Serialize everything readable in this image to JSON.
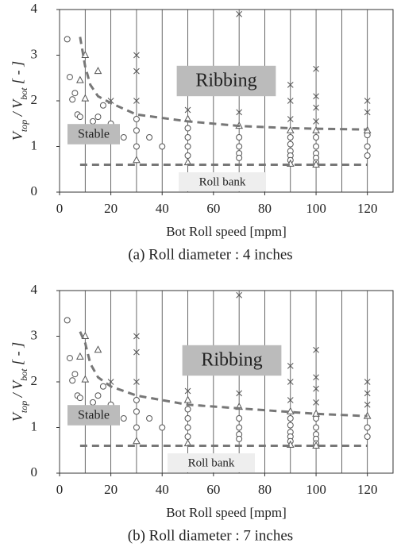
{
  "chart_data": [
    {
      "type": "scatter",
      "caption": "(a) Roll diameter : 4 inches",
      "xlabel": "Bot Roll speed [mpm]",
      "ylabel": [
        {
          "text": "V"
        },
        {
          "text": "top",
          "sub": true
        },
        {
          "text": " / V"
        },
        {
          "text": "bot",
          "sub": true
        },
        {
          "text": " [ - ]"
        }
      ],
      "xlim": [
        0,
        130
      ],
      "ylim": [
        0,
        4
      ],
      "xticks": [
        0,
        20,
        40,
        60,
        80,
        100,
        120
      ],
      "yticks": [
        0,
        1,
        2,
        3,
        4
      ],
      "x_minor_grid": [
        10,
        30,
        50,
        70,
        90,
        110
      ],
      "grid": true,
      "annotations": [
        "Ribbing",
        "Stable",
        "Roll bank"
      ],
      "series": [
        {
          "marker": "circle",
          "color": "#555555",
          "x": [
            3,
            4,
            6,
            5,
            7,
            8,
            13,
            15,
            17,
            20,
            25,
            30,
            30,
            30,
            35,
            40,
            50,
            50,
            50,
            50,
            70,
            70,
            70,
            70,
            90,
            90,
            90,
            90,
            90,
            100,
            100,
            100,
            100,
            100,
            120,
            120,
            120
          ],
          "values": [
            3.35,
            2.52,
            2.17,
            2.03,
            1.7,
            1.65,
            1.55,
            1.65,
            1.9,
            1.5,
            1.2,
            1.6,
            1.35,
            1.0,
            1.2,
            1.0,
            1.4,
            1.2,
            1.0,
            0.8,
            1.2,
            1.0,
            0.85,
            0.75,
            1.2,
            1.05,
            0.9,
            0.8,
            0.7,
            1.2,
            1.0,
            0.85,
            0.75,
            0.65,
            1.25,
            1.0,
            0.8
          ]
        },
        {
          "marker": "triangle",
          "color": "#555555",
          "x": [
            10,
            8,
            10,
            15,
            30,
            50,
            50,
            70,
            90,
            90,
            100,
            100,
            120
          ],
          "values": [
            3.0,
            2.45,
            2.05,
            2.65,
            0.7,
            1.6,
            0.65,
            1.45,
            1.35,
            0.62,
            1.35,
            0.6,
            1.35
          ]
        },
        {
          "marker": "cross",
          "color": "#555555",
          "x": [
            20,
            30,
            30,
            30,
            50,
            50,
            70,
            70,
            90,
            90,
            90,
            100,
            100,
            100,
            100,
            120,
            120
          ],
          "values": [
            2.0,
            3.0,
            2.65,
            2.0,
            2.4,
            1.8,
            3.9,
            1.75,
            2.35,
            2.0,
            1.6,
            2.7,
            2.1,
            1.85,
            1.55,
            2.0,
            1.75
          ]
        },
        {
          "marker": "none",
          "dash": true,
          "color": "#777777",
          "x": [
            8,
            10,
            12,
            15,
            20,
            30,
            50,
            70,
            90,
            120
          ],
          "values": [
            3.4,
            2.75,
            2.35,
            2.1,
            1.95,
            1.7,
            1.55,
            1.45,
            1.4,
            1.37
          ]
        },
        {
          "marker": "none",
          "dash": true,
          "color": "#777777",
          "x": [
            8,
            120
          ],
          "values": [
            0.6,
            0.6
          ]
        }
      ]
    },
    {
      "type": "scatter",
      "caption": "(b) Roll diameter : 7 inches",
      "xlabel": "Bot Roll speed [mpm]",
      "ylabel": [
        {
          "text": "V"
        },
        {
          "text": "top",
          "sub": true
        },
        {
          "text": " / V"
        },
        {
          "text": "bot",
          "sub": true
        },
        {
          "text": " [ - ]"
        }
      ],
      "xlim": [
        0,
        130
      ],
      "ylim": [
        0,
        4
      ],
      "xticks": [
        0,
        20,
        40,
        60,
        80,
        100,
        120
      ],
      "yticks": [
        0,
        1,
        2,
        3,
        4
      ],
      "x_minor_grid": [
        10,
        30,
        50,
        70,
        90,
        110
      ],
      "grid": true,
      "annotations": [
        "Ribbing",
        "Stable",
        "Roll bank"
      ],
      "series": [
        {
          "marker": "circle",
          "color": "#555555",
          "x": [
            3,
            4,
            6,
            5,
            7,
            8,
            13,
            15,
            17,
            20,
            25,
            30,
            30,
            30,
            35,
            40,
            50,
            50,
            50,
            50,
            70,
            70,
            70,
            70,
            90,
            90,
            90,
            90,
            90,
            100,
            100,
            100,
            100,
            100,
            120,
            120
          ],
          "values": [
            3.35,
            2.52,
            2.17,
            2.03,
            1.7,
            1.65,
            1.55,
            1.7,
            1.9,
            1.5,
            1.2,
            1.6,
            1.35,
            1.0,
            1.2,
            1.0,
            1.4,
            1.2,
            1.0,
            0.8,
            1.2,
            1.0,
            0.85,
            0.75,
            1.2,
            1.05,
            0.9,
            0.8,
            0.7,
            1.2,
            1.0,
            0.85,
            0.75,
            0.65,
            1.0,
            0.8
          ]
        },
        {
          "marker": "triangle",
          "color": "#555555",
          "x": [
            10,
            8,
            10,
            15,
            30,
            50,
            50,
            70,
            90,
            90,
            100,
            100,
            120
          ],
          "values": [
            3.0,
            2.55,
            2.05,
            2.7,
            0.7,
            1.6,
            0.65,
            1.45,
            1.35,
            0.62,
            1.3,
            0.6,
            1.25
          ]
        },
        {
          "marker": "cross",
          "color": "#555555",
          "x": [
            20,
            30,
            30,
            30,
            50,
            50,
            70,
            70,
            90,
            90,
            90,
            100,
            100,
            100,
            100,
            120,
            120,
            120
          ],
          "values": [
            2.0,
            3.0,
            2.65,
            2.0,
            2.4,
            1.8,
            3.9,
            1.75,
            2.35,
            2.0,
            1.6,
            2.7,
            2.1,
            1.85,
            1.55,
            2.0,
            1.75,
            1.5
          ]
        },
        {
          "marker": "none",
          "dash": true,
          "color": "#777777",
          "x": [
            8,
            10,
            12,
            15,
            20,
            30,
            50,
            70,
            100,
            120
          ],
          "values": [
            3.1,
            2.85,
            2.4,
            2.1,
            1.9,
            1.7,
            1.5,
            1.42,
            1.3,
            1.25
          ]
        },
        {
          "marker": "none",
          "dash": true,
          "color": "#777777",
          "x": [
            8,
            120
          ],
          "values": [
            0.6,
            0.6
          ]
        }
      ]
    }
  ]
}
